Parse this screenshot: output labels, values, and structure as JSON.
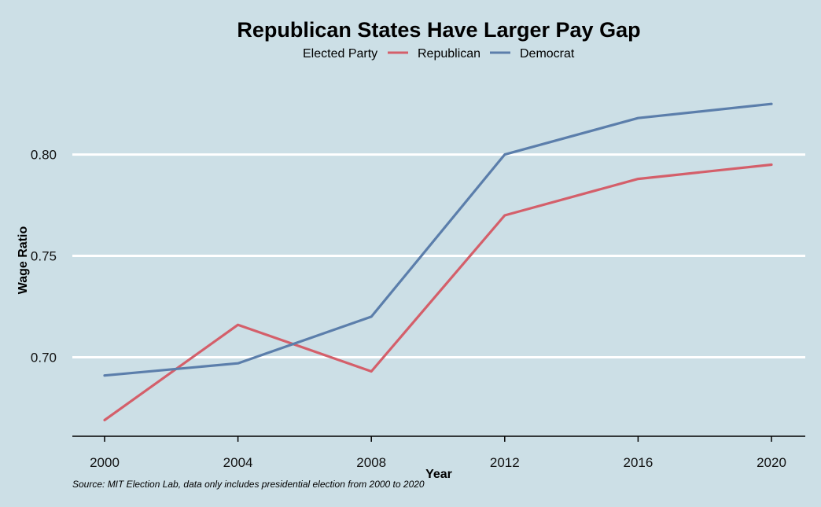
{
  "chart_data": {
    "type": "line",
    "title": "Republican States Have Larger Pay Gap",
    "legend": {
      "title": "Elected Party",
      "position": "top"
    },
    "xlabel": "Year",
    "ylabel": "Wage Ratio",
    "x": [
      2000,
      2004,
      2008,
      2012,
      2016,
      2020
    ],
    "x_ticks": [
      "2000",
      "2004",
      "2008",
      "2012",
      "2016",
      "2020"
    ],
    "y_ticks": [
      "0.70",
      "0.75",
      "0.80"
    ],
    "y_tick_values": [
      0.7,
      0.75,
      0.8
    ],
    "ylim": [
      0.661,
      0.827
    ],
    "grid": "horizontal major",
    "series": [
      {
        "name": "Republican",
        "color": "#d45f6a",
        "values": [
          0.669,
          0.716,
          0.693,
          0.77,
          0.788,
          0.795
        ]
      },
      {
        "name": "Democrat",
        "color": "#5b7eab",
        "values": [
          0.691,
          0.697,
          0.72,
          0.8,
          0.818,
          0.825
        ]
      }
    ],
    "caption": "Source: MIT Election Lab, data only includes presidential election from 2000 to 2020"
  }
}
